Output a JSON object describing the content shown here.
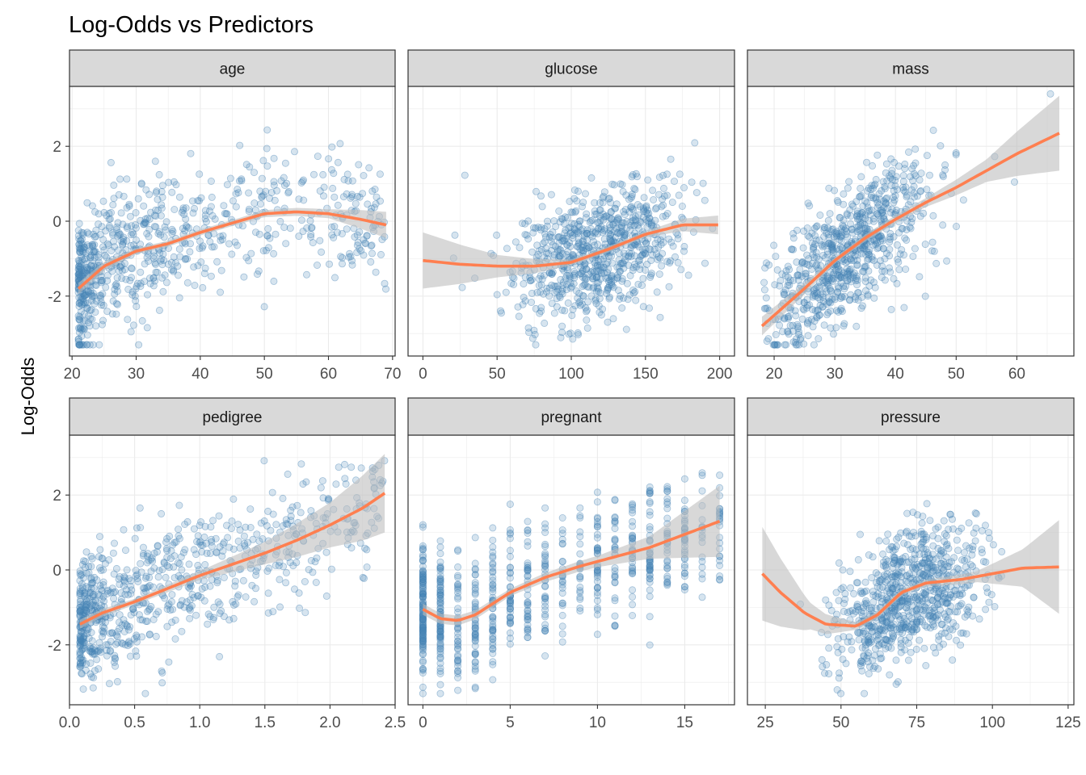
{
  "title": "Log-Odds vs Predictors",
  "ylabel": "Log-Odds",
  "colors": {
    "points": "#4682B4",
    "smooth": "#FF7F50",
    "ribbon": "#BEBEBE",
    "strip_fill": "#D9D9D9",
    "grid": "#EBEBEB",
    "panel_border": "#333333",
    "tick_text": "#4D4D4D"
  },
  "chart_data": [
    {
      "type": "scatter",
      "panel": "age",
      "xlim": [
        19.6,
        70.4
      ],
      "ylim": [
        -3.6,
        3.6
      ],
      "xticks": [
        20,
        30,
        40,
        50,
        60,
        70
      ],
      "yticks": [
        -2,
        0,
        2
      ],
      "grid": true,
      "n_points": 768,
      "point_cloud": {
        "x_range": [
          21,
          69
        ],
        "y_range": [
          -3.3,
          3.4
        ],
        "mode": "left-dense"
      },
      "smooth": [
        [
          21,
          -1.8
        ],
        [
          25,
          -1.2
        ],
        [
          30,
          -0.8
        ],
        [
          35,
          -0.6
        ],
        [
          40,
          -0.3
        ],
        [
          45,
          -0.05
        ],
        [
          50,
          0.2
        ],
        [
          55,
          0.25
        ],
        [
          60,
          0.2
        ],
        [
          65,
          0.05
        ],
        [
          69,
          -0.1
        ]
      ],
      "ribbon_halfwidth": [
        [
          21,
          0.15
        ],
        [
          30,
          0.08
        ],
        [
          45,
          0.08
        ],
        [
          60,
          0.12
        ],
        [
          69,
          0.35
        ]
      ]
    },
    {
      "type": "scatter",
      "panel": "glucose",
      "xlim": [
        -10,
        210
      ],
      "ylim": [
        -3.6,
        3.6
      ],
      "xticks": [
        0,
        50,
        100,
        150,
        200
      ],
      "yticks": [
        -2,
        0,
        2
      ],
      "grid": true,
      "n_points": 768,
      "point_cloud": {
        "x_range": [
          0,
          199
        ],
        "y_range": [
          -3.3,
          3.4
        ],
        "mode": "normal",
        "x_center": 120,
        "x_spread": 30
      },
      "smooth": [
        [
          0,
          -1.05
        ],
        [
          25,
          -1.15
        ],
        [
          50,
          -1.2
        ],
        [
          75,
          -1.2
        ],
        [
          100,
          -1.1
        ],
        [
          125,
          -0.75
        ],
        [
          150,
          -0.35
        ],
        [
          175,
          -0.1
        ],
        [
          199,
          -0.1
        ]
      ],
      "ribbon_halfwidth": [
        [
          0,
          0.75
        ],
        [
          50,
          0.3
        ],
        [
          100,
          0.08
        ],
        [
          150,
          0.08
        ],
        [
          199,
          0.25
        ]
      ]
    },
    {
      "type": "scatter",
      "panel": "mass",
      "xlim": [
        15.6,
        69.4
      ],
      "ylim": [
        -3.6,
        3.6
      ],
      "xticks": [
        20,
        30,
        40,
        50,
        60
      ],
      "yticks": [
        -2,
        0,
        2
      ],
      "grid": true,
      "n_points": 768,
      "point_cloud": {
        "x_range": [
          18,
          67
        ],
        "y_range": [
          -3.3,
          3.4
        ],
        "mode": "linear",
        "x_center": 32,
        "x_spread": 7
      },
      "smooth": [
        [
          18,
          -2.8
        ],
        [
          25,
          -1.8
        ],
        [
          30,
          -1.05
        ],
        [
          35,
          -0.45
        ],
        [
          40,
          0.05
        ],
        [
          45,
          0.5
        ],
        [
          50,
          0.9
        ],
        [
          55,
          1.35
        ],
        [
          60,
          1.8
        ],
        [
          67,
          2.35
        ]
      ],
      "ribbon_halfwidth": [
        [
          18,
          0.25
        ],
        [
          30,
          0.08
        ],
        [
          45,
          0.12
        ],
        [
          55,
          0.3
        ],
        [
          67,
          1.0
        ]
      ]
    },
    {
      "type": "scatter",
      "panel": "pedigree",
      "xlim": [
        0,
        2.5
      ],
      "ylim": [
        -3.6,
        3.6
      ],
      "xticks": [
        0.0,
        0.5,
        1.0,
        1.5,
        2.0,
        2.5
      ],
      "yticks": [
        -2,
        0,
        2
      ],
      "grid": true,
      "n_points": 768,
      "point_cloud": {
        "x_range": [
          0.08,
          2.42
        ],
        "y_range": [
          -3.3,
          3.4
        ],
        "mode": "left-dense"
      },
      "smooth": [
        [
          0.08,
          -1.45
        ],
        [
          0.25,
          -1.15
        ],
        [
          0.5,
          -0.85
        ],
        [
          0.75,
          -0.5
        ],
        [
          1.0,
          -0.15
        ],
        [
          1.25,
          0.15
        ],
        [
          1.5,
          0.45
        ],
        [
          1.75,
          0.8
        ],
        [
          2.0,
          1.2
        ],
        [
          2.25,
          1.65
        ],
        [
          2.42,
          2.05
        ]
      ],
      "ribbon_halfwidth": [
        [
          0.08,
          0.12
        ],
        [
          0.5,
          0.08
        ],
        [
          1.0,
          0.12
        ],
        [
          1.5,
          0.3
        ],
        [
          2.0,
          0.6
        ],
        [
          2.42,
          1.05
        ]
      ]
    },
    {
      "type": "scatter",
      "panel": "pregnant",
      "xlim": [
        -0.85,
        17.85
      ],
      "ylim": [
        -3.6,
        3.6
      ],
      "xticks": [
        0,
        5,
        10,
        15
      ],
      "yticks": [
        -2,
        0,
        2
      ],
      "grid": true,
      "n_points": 768,
      "point_cloud": {
        "x_range": [
          0,
          17
        ],
        "y_range": [
          -3.3,
          3.4
        ],
        "mode": "discrete"
      },
      "smooth": [
        [
          0,
          -1.05
        ],
        [
          1,
          -1.3
        ],
        [
          2,
          -1.35
        ],
        [
          3,
          -1.2
        ],
        [
          4,
          -0.9
        ],
        [
          5,
          -0.6
        ],
        [
          7,
          -0.2
        ],
        [
          9,
          0.1
        ],
        [
          11,
          0.35
        ],
        [
          13,
          0.6
        ],
        [
          15,
          0.95
        ],
        [
          17,
          1.3
        ]
      ],
      "ribbon_halfwidth": [
        [
          0,
          0.15
        ],
        [
          5,
          0.1
        ],
        [
          10,
          0.15
        ],
        [
          13,
          0.3
        ],
        [
          17,
          0.95
        ]
      ]
    },
    {
      "type": "scatter",
      "panel": "pressure",
      "xlim": [
        19.1,
        126.9
      ],
      "ylim": [
        -3.6,
        3.6
      ],
      "xticks": [
        25,
        50,
        75,
        100,
        125
      ],
      "yticks": [
        -2,
        0,
        2
      ],
      "grid": true,
      "n_points": 768,
      "point_cloud": {
        "x_range": [
          24,
          122
        ],
        "y_range": [
          -3.3,
          3.4
        ],
        "mode": "normal",
        "x_center": 72,
        "x_spread": 12
      },
      "smooth": [
        [
          24,
          -0.1
        ],
        [
          30,
          -0.6
        ],
        [
          38,
          -1.15
        ],
        [
          45,
          -1.45
        ],
        [
          55,
          -1.5
        ],
        [
          62,
          -1.2
        ],
        [
          70,
          -0.6
        ],
        [
          78,
          -0.35
        ],
        [
          90,
          -0.25
        ],
        [
          100,
          -0.1
        ],
        [
          110,
          0.05
        ],
        [
          122,
          0.08
        ]
      ],
      "ribbon_halfwidth": [
        [
          24,
          1.25
        ],
        [
          40,
          0.35
        ],
        [
          55,
          0.1
        ],
        [
          75,
          0.08
        ],
        [
          95,
          0.15
        ],
        [
          110,
          0.5
        ],
        [
          122,
          1.25
        ]
      ]
    }
  ]
}
